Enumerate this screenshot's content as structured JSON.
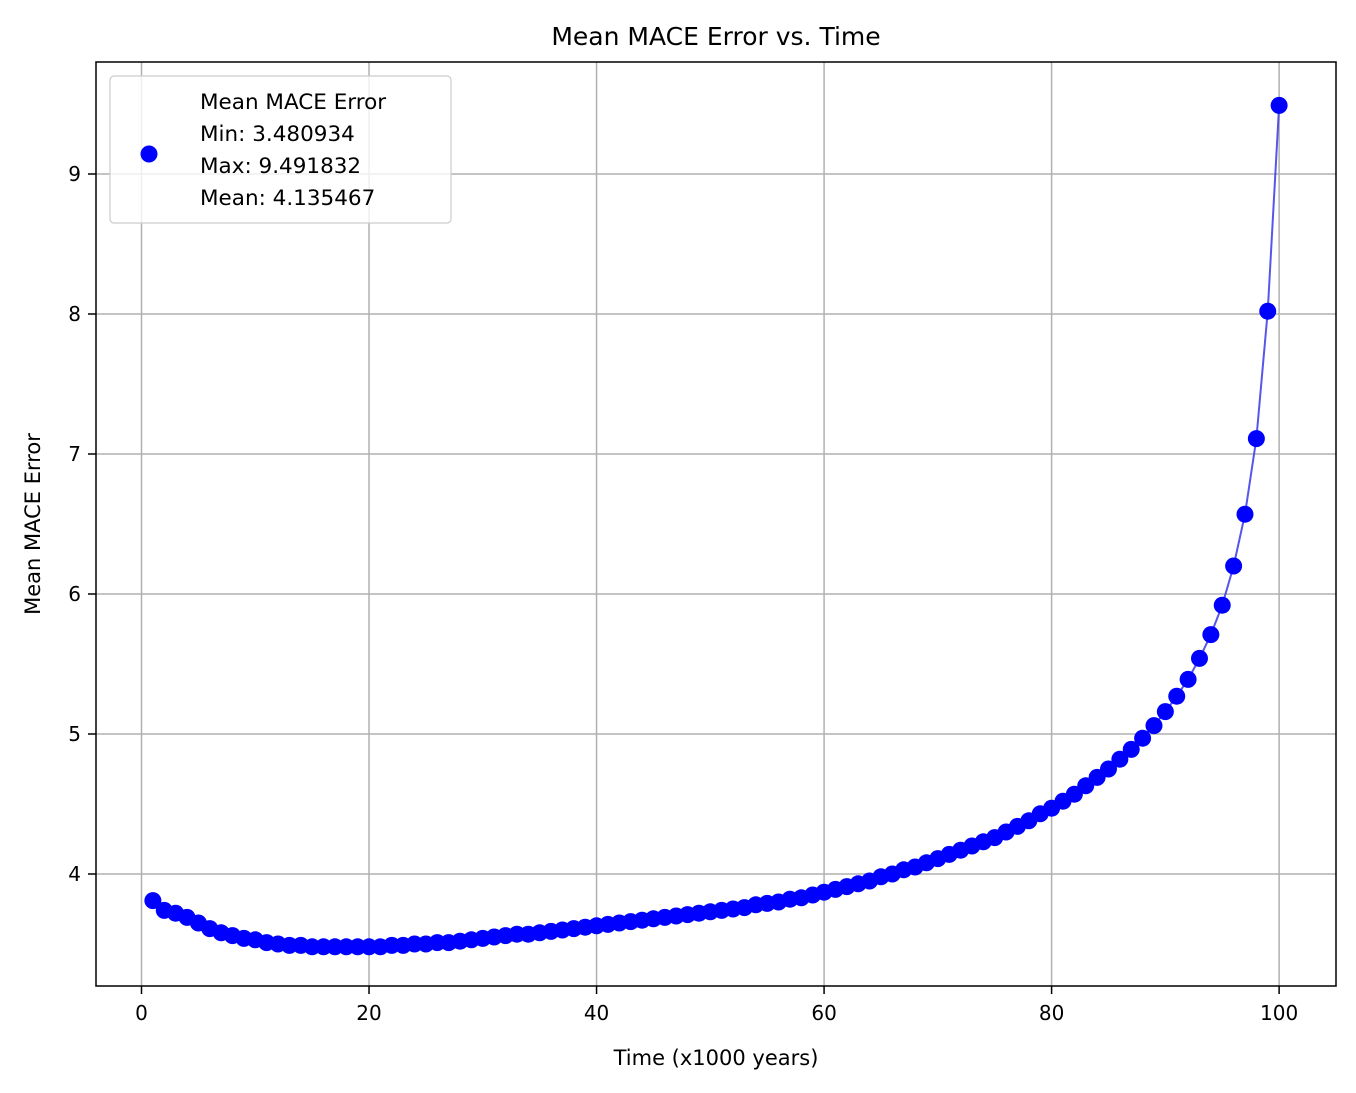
{
  "chart_data": {
    "type": "line",
    "title": "Mean MACE Error vs. Time",
    "xlabel": "Time (x1000 years)",
    "ylabel": "Mean MACE Error",
    "xlim": [
      -4,
      105
    ],
    "ylim": [
      3.2,
      9.8
    ],
    "xticks": [
      0,
      20,
      40,
      60,
      80,
      100
    ],
    "yticks": [
      4,
      5,
      6,
      7,
      8,
      9
    ],
    "grid": true,
    "legend": {
      "placement": "upper-left",
      "lines": [
        "Mean MACE Error",
        "Min: 3.480934",
        "Max: 9.491832",
        "Mean: 4.135467"
      ]
    },
    "colors": {
      "marker": "#0000ff",
      "line": "#4444e8",
      "grid": "#b0b0b0"
    },
    "series": [
      {
        "name": "Mean MACE Error",
        "x": [
          1,
          2,
          3,
          4,
          5,
          6,
          7,
          8,
          9,
          10,
          11,
          12,
          13,
          14,
          15,
          16,
          17,
          18,
          19,
          20,
          21,
          22,
          23,
          24,
          25,
          26,
          27,
          28,
          29,
          30,
          31,
          32,
          33,
          34,
          35,
          36,
          37,
          38,
          39,
          40,
          41,
          42,
          43,
          44,
          45,
          46,
          47,
          48,
          49,
          50,
          51,
          52,
          53,
          54,
          55,
          56,
          57,
          58,
          59,
          60,
          61,
          62,
          63,
          64,
          65,
          66,
          67,
          68,
          69,
          70,
          71,
          72,
          73,
          74,
          75,
          76,
          77,
          78,
          79,
          80,
          81,
          82,
          83,
          84,
          85,
          86,
          87,
          88,
          89,
          90,
          91,
          92,
          93,
          94,
          95,
          96,
          97,
          98,
          99,
          100
        ],
        "y": [
          3.81,
          3.74,
          3.72,
          3.69,
          3.65,
          3.61,
          3.58,
          3.56,
          3.54,
          3.53,
          3.51,
          3.5,
          3.49,
          3.49,
          3.48,
          3.48,
          3.48,
          3.48,
          3.48,
          3.48,
          3.48,
          3.49,
          3.49,
          3.5,
          3.5,
          3.51,
          3.51,
          3.52,
          3.53,
          3.54,
          3.55,
          3.56,
          3.57,
          3.57,
          3.58,
          3.59,
          3.6,
          3.61,
          3.62,
          3.63,
          3.64,
          3.65,
          3.66,
          3.67,
          3.68,
          3.69,
          3.7,
          3.71,
          3.72,
          3.73,
          3.74,
          3.75,
          3.76,
          3.78,
          3.79,
          3.8,
          3.82,
          3.83,
          3.85,
          3.87,
          3.89,
          3.91,
          3.93,
          3.95,
          3.98,
          4.0,
          4.03,
          4.05,
          4.08,
          4.11,
          4.14,
          4.17,
          4.2,
          4.23,
          4.26,
          4.3,
          4.34,
          4.38,
          4.43,
          4.47,
          4.52,
          4.57,
          4.63,
          4.69,
          4.75,
          4.82,
          4.89,
          4.97,
          5.06,
          5.16,
          5.27,
          5.39,
          5.54,
          5.71,
          5.92,
          6.2,
          6.57,
          7.11,
          8.02,
          9.49
        ]
      }
    ]
  }
}
